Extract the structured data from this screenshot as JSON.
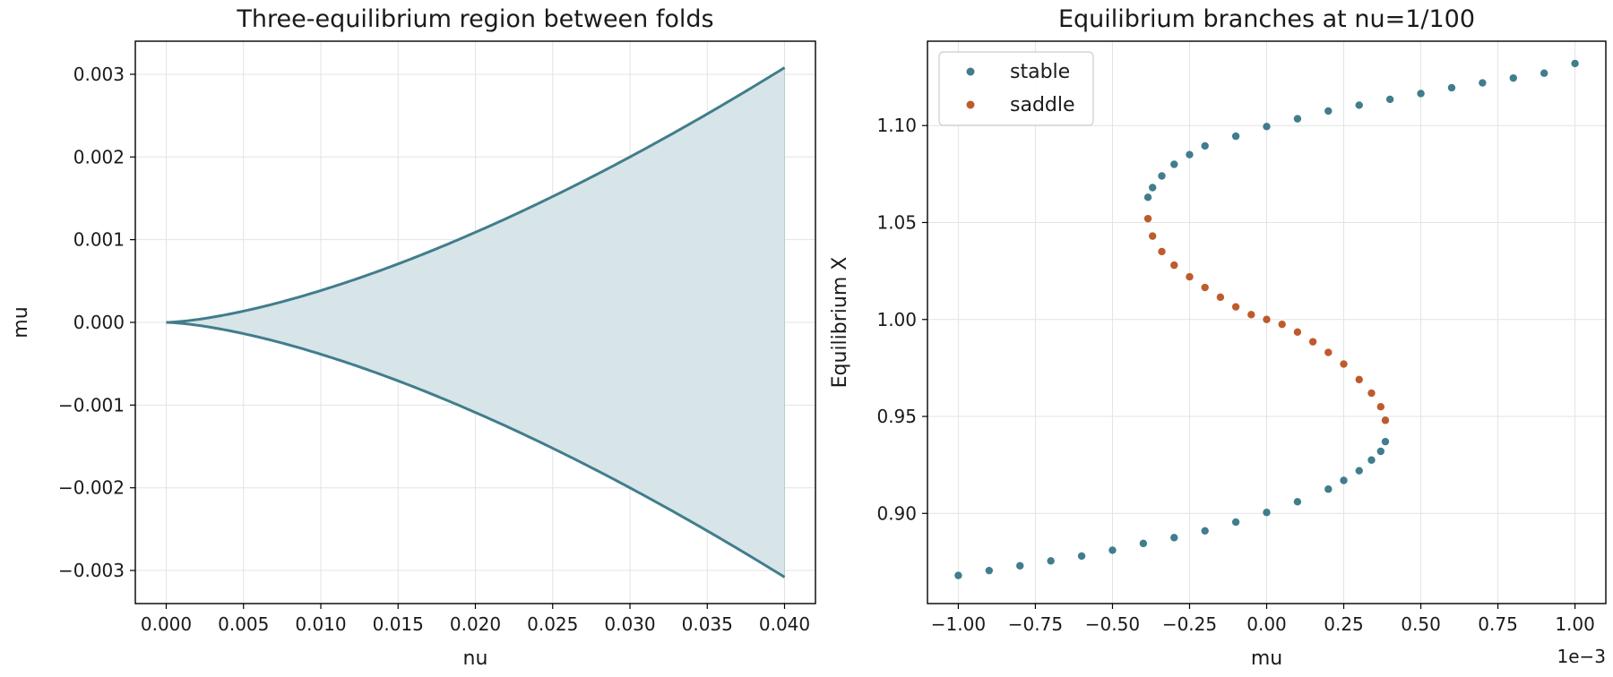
{
  "chart_data": [
    {
      "type": "area",
      "title": "Three-equilibrium region between folds",
      "xlabel": "nu",
      "ylabel": "mu",
      "xlim": [
        -0.002,
        0.042
      ],
      "ylim": [
        -0.0034,
        0.0034
      ],
      "xticks": [
        0.0,
        0.005,
        0.01,
        0.015,
        0.02,
        0.025,
        0.03,
        0.035,
        0.04
      ],
      "xtick_labels": [
        "0.000",
        "0.005",
        "0.010",
        "0.015",
        "0.020",
        "0.025",
        "0.030",
        "0.035",
        "0.040"
      ],
      "yticks": [
        -0.003,
        -0.002,
        -0.001,
        0.0,
        0.001,
        0.002,
        0.003
      ],
      "ytick_labels": [
        "−0.003",
        "−0.002",
        "−0.001",
        "0.000",
        "0.001",
        "0.002",
        "0.003"
      ],
      "grid": true,
      "color": "#417d8c",
      "fill_color": "#d7e4e8",
      "upper": {
        "x": [
          0.0,
          0.005,
          0.01,
          0.015,
          0.02,
          0.025,
          0.03,
          0.035,
          0.04
        ],
        "y": [
          0.0,
          0.00014,
          0.00038,
          0.0007,
          0.00108,
          0.00151,
          0.00198,
          0.0025,
          0.00308
        ]
      },
      "lower": {
        "x": [
          0.0,
          0.005,
          0.01,
          0.015,
          0.02,
          0.025,
          0.03,
          0.035,
          0.04
        ],
        "y": [
          0.0,
          -0.00014,
          -0.00038,
          -0.0007,
          -0.00108,
          -0.00151,
          -0.00198,
          -0.0025,
          -0.00308
        ]
      }
    },
    {
      "type": "scatter",
      "title": "Equilibrium branches at nu=1/100",
      "xlabel": "mu",
      "ylabel": "Equilibrium X",
      "x_scale_label": "1e−3",
      "xlim": [
        -1.1,
        1.1
      ],
      "ylim": [
        0.8535,
        1.1435
      ],
      "xticks": [
        -1.0,
        -0.75,
        -0.5,
        -0.25,
        0.0,
        0.25,
        0.5,
        0.75,
        1.0
      ],
      "xtick_labels": [
        "−1.00",
        "−0.75",
        "−0.50",
        "−0.25",
        "0.00",
        "0.25",
        "0.50",
        "0.75",
        "1.00"
      ],
      "yticks": [
        0.9,
        0.95,
        1.0,
        1.05,
        1.1
      ],
      "ytick_labels": [
        "0.90",
        "0.95",
        "1.00",
        "1.05",
        "1.10"
      ],
      "grid": true,
      "legend": {
        "position": "top-left",
        "entries": [
          {
            "label": "stable",
            "color": "#417d8c"
          },
          {
            "label": "saddle",
            "color": "#bd5b2d"
          }
        ]
      },
      "series": [
        {
          "name": "stable",
          "color": "#417d8c",
          "x": [
            -1.0,
            -0.9,
            -0.8,
            -0.7,
            -0.6,
            -0.5,
            -0.4,
            -0.3,
            -0.2,
            -0.1,
            0.0,
            0.1,
            0.2,
            0.25,
            0.3,
            0.34,
            0.37,
            0.385,
            -0.385,
            -0.37,
            -0.34,
            -0.3,
            -0.25,
            -0.2,
            -0.1,
            0.0,
            0.1,
            0.2,
            0.3,
            0.4,
            0.5,
            0.6,
            0.7,
            0.8,
            0.9,
            1.0
          ],
          "y": [
            0.868,
            0.8705,
            0.873,
            0.8755,
            0.878,
            0.881,
            0.8845,
            0.8875,
            0.891,
            0.8955,
            0.9005,
            0.906,
            0.9125,
            0.917,
            0.922,
            0.9275,
            0.932,
            0.937,
            1.063,
            1.068,
            1.074,
            1.08,
            1.085,
            1.0895,
            1.0945,
            1.0995,
            1.1035,
            1.1075,
            1.1105,
            1.1135,
            1.1165,
            1.1195,
            1.122,
            1.1245,
            1.127,
            1.132
          ]
        },
        {
          "name": "saddle",
          "color": "#bd5b2d",
          "x": [
            -0.385,
            -0.37,
            -0.34,
            -0.3,
            -0.25,
            -0.2,
            -0.15,
            -0.1,
            -0.05,
            0.0,
            0.05,
            0.1,
            0.15,
            0.2,
            0.25,
            0.3,
            0.34,
            0.37,
            0.385
          ],
          "y": [
            1.052,
            1.043,
            1.035,
            1.028,
            1.022,
            1.0165,
            1.0115,
            1.0065,
            1.0025,
            1.0,
            0.9975,
            0.9935,
            0.9885,
            0.983,
            0.977,
            0.969,
            0.962,
            0.955,
            0.948
          ]
        }
      ]
    }
  ]
}
